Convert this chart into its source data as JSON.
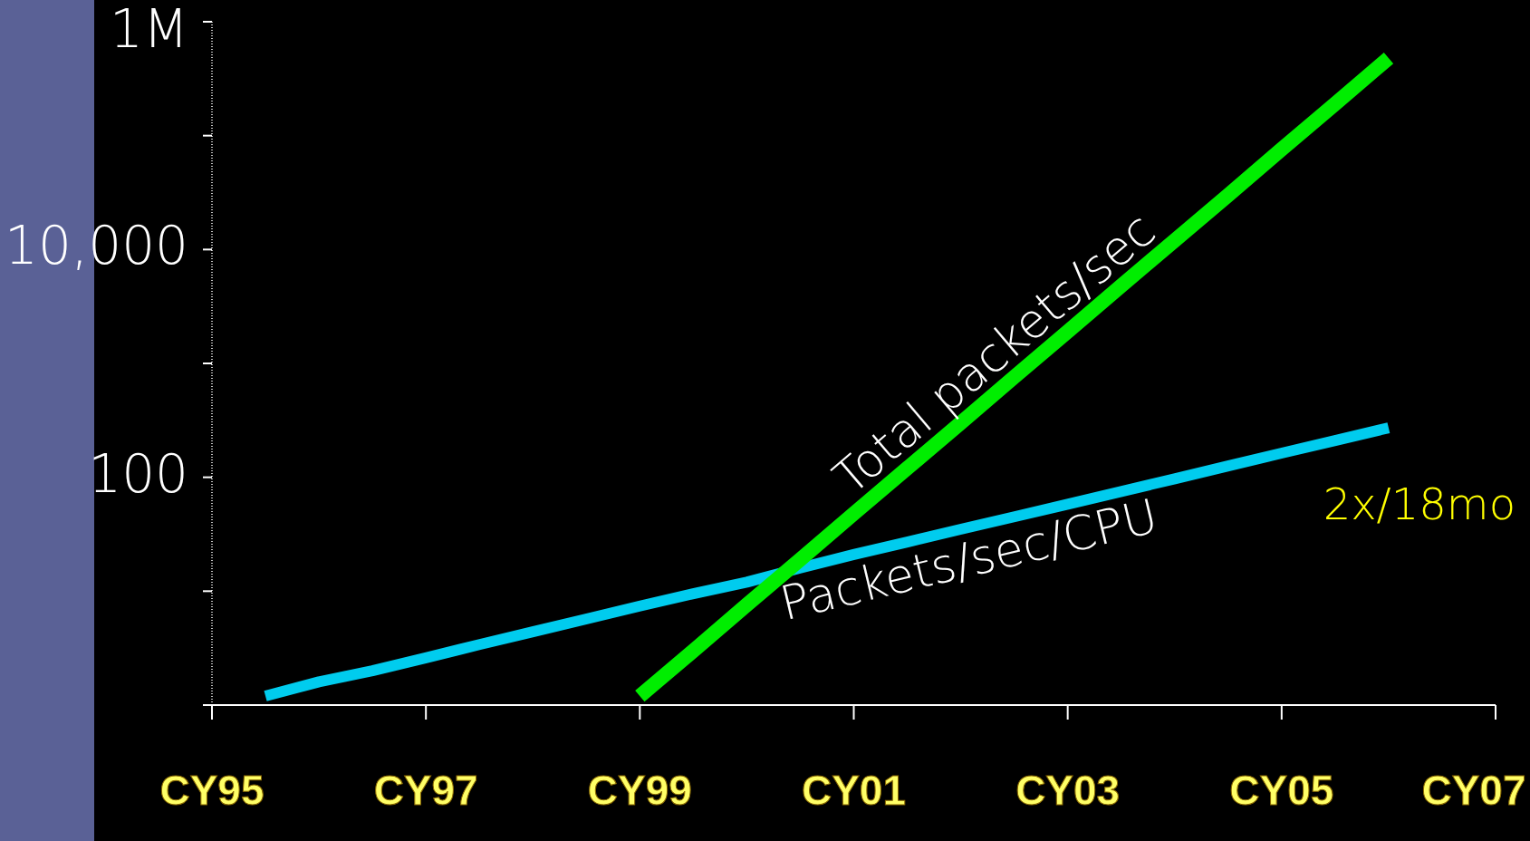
{
  "chart_data": {
    "type": "line",
    "log": "y",
    "ylim": [
      1,
      1000000
    ],
    "categories": [
      "CY95",
      null,
      null,
      null,
      "CY97",
      null,
      null,
      null,
      "CY99",
      null,
      null,
      null,
      "CY01",
      null,
      null,
      null,
      "CY03",
      null,
      null,
      null,
      "CY05",
      null,
      null,
      null,
      "CY07"
    ],
    "yticks": [
      {
        "value": 1,
        "label": null
      },
      {
        "value": 10,
        "label": null
      },
      {
        "value": 100,
        "label": "100"
      },
      {
        "value": 1000,
        "label": null
      },
      {
        "value": 10000,
        "label": "10,000"
      },
      {
        "value": 100000,
        "label": null
      },
      {
        "value": 1000000,
        "label": "1M"
      }
    ],
    "series": [
      {
        "name": "Packets/sec/CPU",
        "color": "#00ccee",
        "values": [
          null,
          1.2,
          1.6,
          2.0,
          2.6,
          3.4,
          4.4,
          5.7,
          7.4,
          9.5,
          12,
          16,
          21,
          27,
          35,
          45,
          58,
          75,
          97,
          126,
          163,
          210,
          272,
          null,
          null
        ]
      },
      {
        "name": "Total packets/sec",
        "color": "#00ee00",
        "values": [
          null,
          null,
          null,
          null,
          null,
          null,
          null,
          null,
          1.2,
          3,
          7.6,
          19,
          48,
          120,
          300,
          760,
          1900,
          4800,
          12000,
          30000,
          76000,
          190000,
          480000,
          null,
          null
        ]
      }
    ],
    "annotations": [
      "2x/18mo"
    ],
    "grid": false,
    "legend": false,
    "marker": "none",
    "line_style": "solid"
  }
}
